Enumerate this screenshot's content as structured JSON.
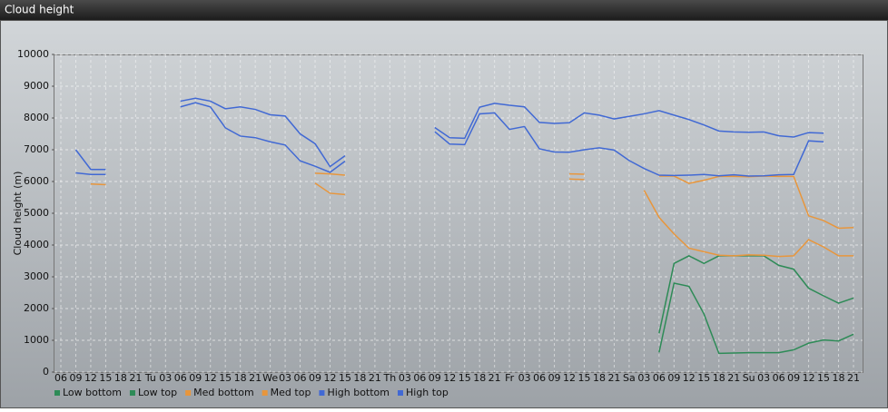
{
  "window_title": "Cloud height",
  "chart_data": {
    "type": "line",
    "y_label": "Cloud height (m)",
    "categories": [
      "06",
      "09",
      "12",
      "15",
      "18",
      "21",
      "Tu",
      "03",
      "06",
      "09",
      "12",
      "15",
      "18",
      "21",
      "We",
      "03",
      "06",
      "09",
      "12",
      "15",
      "18",
      "21",
      "Th",
      "03",
      "06",
      "09",
      "12",
      "15",
      "18",
      "21",
      "Fr",
      "03",
      "06",
      "09",
      "12",
      "15",
      "18",
      "21",
      "Sa",
      "03",
      "06",
      "09",
      "12",
      "15",
      "18",
      "21",
      "Su",
      "03",
      "06",
      "09",
      "12",
      "15",
      "18",
      "21"
    ],
    "ylim": [
      0,
      10000
    ],
    "yticks": [
      0,
      1000,
      2000,
      3000,
      4000,
      5000,
      6000,
      7000,
      8000,
      9000,
      10000
    ],
    "grid": true,
    "legend": "bottom-left",
    "series": [
      {
        "name": "Low bottom",
        "color": "#2e8b57",
        "values": [
          null,
          null,
          null,
          null,
          null,
          null,
          null,
          null,
          null,
          null,
          null,
          null,
          null,
          null,
          null,
          null,
          null,
          null,
          null,
          null,
          null,
          null,
          null,
          null,
          null,
          null,
          null,
          null,
          null,
          null,
          null,
          null,
          null,
          null,
          null,
          null,
          null,
          null,
          null,
          null,
          620,
          2800,
          2700,
          1830,
          590,
          600,
          610,
          610,
          610,
          700,
          910,
          1010,
          980,
          1190
        ]
      },
      {
        "name": "Low top",
        "color": "#2e8b57",
        "values": [
          null,
          null,
          null,
          null,
          null,
          null,
          null,
          null,
          null,
          null,
          null,
          null,
          null,
          null,
          null,
          null,
          null,
          null,
          null,
          null,
          null,
          null,
          null,
          null,
          null,
          null,
          null,
          null,
          null,
          null,
          null,
          null,
          null,
          null,
          null,
          null,
          null,
          null,
          null,
          null,
          1220,
          3420,
          3660,
          3420,
          3660,
          3660,
          3660,
          3660,
          3360,
          3240,
          2640,
          2400,
          2170,
          2330
        ]
      },
      {
        "name": "Med bottom",
        "color": "#e8963c",
        "values": [
          null,
          null,
          5920,
          5900,
          null,
          null,
          null,
          null,
          null,
          null,
          null,
          null,
          null,
          null,
          null,
          null,
          null,
          5950,
          5630,
          5590,
          null,
          null,
          null,
          null,
          null,
          null,
          null,
          null,
          null,
          null,
          null,
          null,
          null,
          null,
          6080,
          6060,
          null,
          null,
          null,
          5720,
          4870,
          4350,
          3900,
          3790,
          3680,
          3660,
          3690,
          3680,
          3640,
          3660,
          4170,
          3940,
          3660,
          3660
        ]
      },
      {
        "name": "Med top",
        "color": "#e8963c",
        "values": [
          null,
          null,
          null,
          null,
          null,
          null,
          null,
          null,
          null,
          null,
          null,
          null,
          null,
          null,
          null,
          null,
          null,
          6260,
          6240,
          6200,
          null,
          null,
          null,
          null,
          null,
          null,
          null,
          null,
          null,
          null,
          null,
          null,
          null,
          null,
          6240,
          6230,
          null,
          null,
          null,
          null,
          6170,
          6170,
          5940,
          6040,
          6160,
          6160,
          6150,
          6170,
          6160,
          6160,
          4920,
          4770,
          4530,
          4550
        ]
      },
      {
        "name": "High bottom",
        "color": "#4169d4",
        "values": [
          null,
          6270,
          6220,
          6220,
          null,
          null,
          null,
          null,
          8350,
          8480,
          8350,
          7690,
          7430,
          7380,
          7250,
          7150,
          6650,
          6480,
          6290,
          6640,
          null,
          null,
          null,
          null,
          null,
          7570,
          7180,
          7160,
          8130,
          8160,
          7640,
          7730,
          7030,
          6930,
          6920,
          7000,
          7060,
          6990,
          6660,
          6410,
          6200,
          6190,
          6200,
          6220,
          6180,
          6210,
          6170,
          6180,
          6210,
          6220,
          7280,
          7250,
          null,
          null
        ]
      },
      {
        "name": "High top",
        "color": "#4169d4",
        "values": [
          null,
          7000,
          6380,
          6380,
          null,
          null,
          null,
          null,
          8530,
          8620,
          8530,
          8290,
          8350,
          8270,
          8100,
          8060,
          7500,
          7190,
          6470,
          6810,
          null,
          null,
          null,
          null,
          null,
          7700,
          7380,
          7360,
          8340,
          8460,
          8400,
          8350,
          7860,
          7830,
          7850,
          8160,
          8090,
          7970,
          8050,
          8130,
          8230,
          8090,
          7950,
          7780,
          7590,
          7560,
          7550,
          7560,
          7440,
          7400,
          7540,
          7520,
          null,
          null
        ]
      }
    ]
  }
}
